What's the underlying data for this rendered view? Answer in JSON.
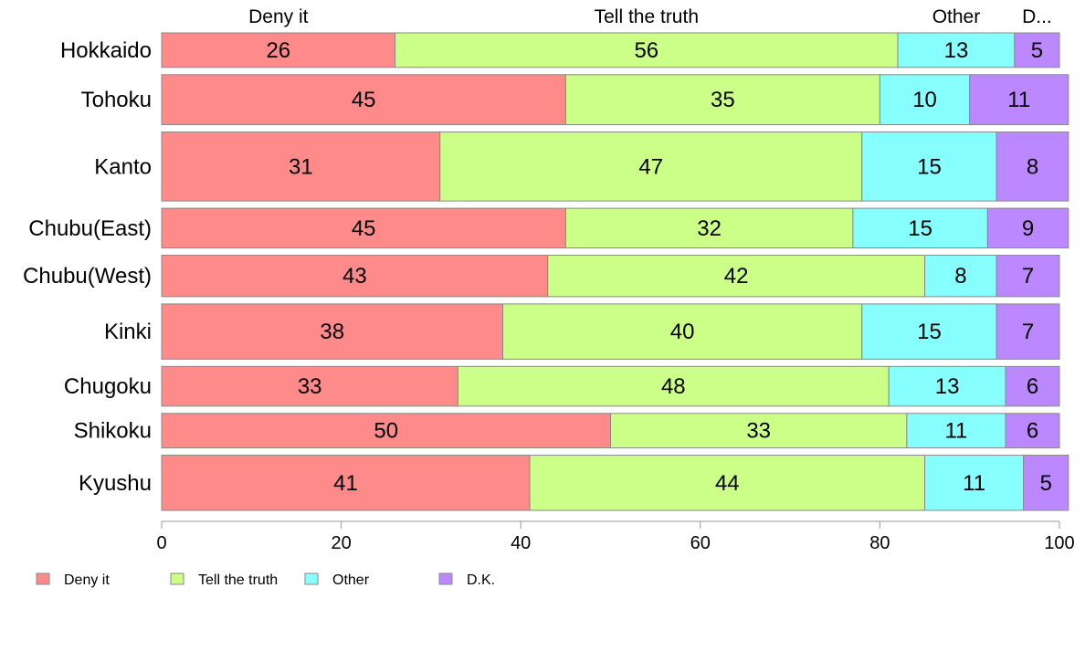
{
  "chart_data": {
    "type": "bar",
    "orientation": "horizontal",
    "stacked": true,
    "categories": [
      "Hokkaido",
      "Tohoku",
      "Kanto",
      "Chubu(East)",
      "Chubu(West)",
      "Kinki",
      "Chugoku",
      "Shikoku",
      "Kyushu"
    ],
    "bar_widths": [
      1.0,
      1.45,
      2.0,
      1.15,
      1.2,
      1.6,
      1.15,
      1.0,
      1.6
    ],
    "series": [
      {
        "name": "Deny it",
        "color": "#ff8a8a",
        "values": [
          26,
          45,
          31,
          45,
          43,
          38,
          33,
          50,
          41
        ]
      },
      {
        "name": "Tell the truth",
        "color": "#ccff88",
        "values": [
          56,
          35,
          47,
          32,
          42,
          40,
          48,
          33,
          44
        ]
      },
      {
        "name": "Other",
        "color": "#88ffff",
        "values": [
          13,
          10,
          15,
          15,
          8,
          15,
          13,
          11,
          11
        ]
      },
      {
        "name": "D.K.",
        "color": "#bb88ff",
        "values": [
          5,
          11,
          8,
          9,
          7,
          7,
          6,
          6,
          5
        ]
      }
    ],
    "top_labels": [
      "Deny it",
      "Tell the truth",
      "Other",
      "D..."
    ],
    "xlim": [
      0,
      100
    ],
    "xticks": [
      0,
      20,
      40,
      60,
      80,
      100
    ],
    "grid": false,
    "legend_position": "bottom-left"
  }
}
